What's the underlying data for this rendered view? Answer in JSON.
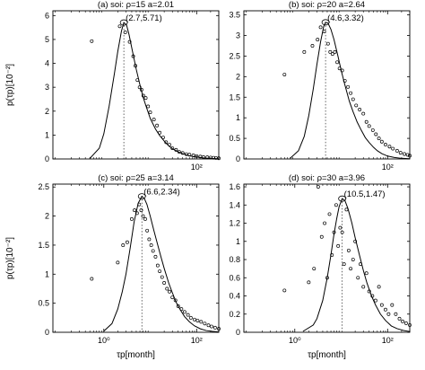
{
  "chart_data": [
    {
      "type": "line",
      "title": "(a) soi:  ρ=15   a=2.01",
      "ylabel": "p(τp)[10⁻²]",
      "xlabel": "",
      "xscale": "log",
      "xlim": [
        0.08,
        300
      ],
      "ylim": [
        0,
        6.2
      ],
      "yticks": [
        0,
        1,
        2,
        3,
        4,
        5,
        6
      ],
      "yticklabels": [
        "0",
        "1",
        "2",
        "3",
        "4",
        "5",
        "6"
      ],
      "xticks": [
        100
      ],
      "xticklabels": [
        "10²"
      ],
      "peak": {
        "x": 2.7,
        "y": 5.71,
        "label": "(2.7,5.71)"
      },
      "curve": {
        "x": [
          0.5,
          0.8,
          1.0,
          1.3,
          1.7,
          2.0,
          2.4,
          2.7,
          3.1,
          3.5,
          4.0,
          5.0,
          6.0,
          7.0,
          8.0,
          10,
          13,
          16,
          20,
          25,
          30,
          40,
          50,
          70,
          100,
          150,
          200,
          300
        ],
        "y": [
          0.02,
          0.45,
          1.05,
          2.2,
          3.6,
          4.5,
          5.35,
          5.71,
          5.6,
          5.2,
          4.65,
          3.75,
          3.1,
          2.6,
          2.25,
          1.7,
          1.25,
          0.98,
          0.75,
          0.55,
          0.43,
          0.3,
          0.22,
          0.13,
          0.08,
          0.04,
          0.025,
          0.01
        ]
      },
      "points": {
        "x": [
          0.55,
          2.2,
          2.9,
          3.6,
          4.3,
          4.8,
          5.3,
          5.9,
          6.5,
          7.1,
          8.0,
          9.0,
          10,
          12,
          14,
          16,
          19,
          22,
          26,
          30,
          36,
          42,
          50,
          60,
          70,
          85,
          100,
          120,
          140,
          170,
          200,
          230,
          260,
          300
        ],
        "y": [
          4.93,
          5.55,
          5.3,
          4.9,
          4.3,
          3.9,
          3.3,
          3.0,
          2.9,
          2.65,
          2.55,
          2.2,
          1.95,
          1.65,
          1.4,
          1.1,
          0.9,
          0.7,
          0.6,
          0.45,
          0.38,
          0.3,
          0.25,
          0.2,
          0.18,
          0.15,
          0.12,
          0.1,
          0.08,
          0.07,
          0.06,
          0.05,
          0.04,
          0.03
        ]
      }
    },
    {
      "type": "line",
      "title": "(b) soi:  ρ=20   a=2.64",
      "ylabel": "",
      "xlabel": "",
      "xscale": "log",
      "xlim": [
        0.08,
        300
      ],
      "ylim": [
        0,
        3.6
      ],
      "yticks": [
        0,
        0.5,
        1,
        1.5,
        2,
        2.5,
        3,
        3.5
      ],
      "yticklabels": [
        "0",
        "0.5",
        "1",
        "1.5",
        "2",
        "2.5",
        "3",
        "3.5"
      ],
      "xticks": [
        100
      ],
      "xticklabels": [
        "10²"
      ],
      "peak": {
        "x": 4.6,
        "y": 3.32,
        "label": "(4.6,3.32)"
      },
      "curve": {
        "x": [
          0.8,
          1.2,
          1.6,
          2.0,
          2.5,
          3.0,
          3.6,
          4.2,
          4.6,
          5.2,
          6.0,
          7.0,
          8.5,
          10,
          12,
          15,
          18,
          22,
          27,
          33,
          40,
          50,
          60,
          75,
          100,
          140,
          200,
          300
        ],
        "y": [
          0.02,
          0.2,
          0.55,
          1.05,
          1.7,
          2.3,
          2.85,
          3.22,
          3.32,
          3.3,
          3.15,
          2.9,
          2.5,
          2.15,
          1.8,
          1.4,
          1.15,
          0.9,
          0.7,
          0.52,
          0.4,
          0.28,
          0.2,
          0.13,
          0.07,
          0.035,
          0.015,
          0.005
        ]
      },
      "points": {
        "x": [
          0.6,
          1.6,
          2.4,
          3.1,
          3.6,
          4.3,
          5.2,
          5.8,
          6.5,
          7.3,
          8.2,
          9.2,
          10.5,
          12,
          14,
          16,
          18,
          21,
          25,
          30,
          35,
          40,
          48,
          56,
          65,
          75,
          90,
          110,
          130,
          160,
          190,
          230,
          270,
          300
        ],
        "y": [
          2.05,
          2.6,
          2.75,
          2.9,
          3.2,
          3.1,
          2.8,
          2.6,
          2.55,
          2.6,
          2.35,
          2.2,
          2.15,
          1.9,
          1.75,
          1.6,
          1.45,
          1.3,
          1.2,
          1.1,
          0.9,
          0.8,
          0.7,
          0.6,
          0.5,
          0.42,
          0.35,
          0.3,
          0.25,
          0.2,
          0.15,
          0.12,
          0.1,
          0.08
        ]
      }
    },
    {
      "type": "line",
      "title": "(c) soi:  ρ=25   a=3.14",
      "ylabel": "p(τp)[10⁻²]",
      "xlabel": "τp[month]",
      "xscale": "log",
      "xlim": [
        0.08,
        300
      ],
      "ylim": [
        0,
        2.55
      ],
      "yticks": [
        0,
        0.5,
        1,
        1.5,
        2,
        2.5
      ],
      "yticklabels": [
        "0",
        "0.5",
        "1",
        "1.5",
        "2",
        "2.5"
      ],
      "xticks": [
        1,
        100
      ],
      "xticklabels": [
        "10⁰",
        "10²"
      ],
      "peak": {
        "x": 6.6,
        "y": 2.34,
        "label": "(6.6,2.34)"
      },
      "curve": {
        "x": [
          1.0,
          1.5,
          2.0,
          2.5,
          3.0,
          3.7,
          4.5,
          5.5,
          6.6,
          7.5,
          8.5,
          10,
          12,
          14,
          17,
          20,
          25,
          30,
          36,
          45,
          55,
          70,
          90,
          120,
          160,
          220,
          300
        ],
        "y": [
          0.02,
          0.15,
          0.4,
          0.7,
          1.0,
          1.45,
          1.9,
          2.22,
          2.34,
          2.3,
          2.2,
          2.0,
          1.75,
          1.55,
          1.3,
          1.1,
          0.85,
          0.68,
          0.52,
          0.38,
          0.27,
          0.18,
          0.11,
          0.06,
          0.03,
          0.015,
          0.005
        ]
      },
      "points": {
        "x": [
          0.55,
          2.0,
          2.6,
          3.2,
          4.0,
          4.6,
          5.2,
          5.8,
          6.4,
          7.0,
          7.8,
          8.6,
          9.5,
          10.5,
          11.5,
          13,
          14.5,
          16,
          18,
          20,
          23,
          26,
          30,
          35,
          40,
          47,
          55,
          65,
          75,
          90,
          105,
          125,
          150,
          180,
          210,
          250,
          300
        ],
        "y": [
          0.92,
          1.2,
          1.5,
          1.55,
          1.95,
          2.1,
          2.05,
          2.2,
          2.1,
          2.0,
          1.95,
          1.75,
          1.6,
          1.5,
          1.4,
          1.3,
          1.15,
          1.05,
          0.95,
          0.85,
          0.75,
          0.7,
          0.6,
          0.55,
          0.45,
          0.4,
          0.35,
          0.3,
          0.25,
          0.22,
          0.2,
          0.18,
          0.15,
          0.12,
          0.1,
          0.08,
          0.06
        ]
      }
    },
    {
      "type": "line",
      "title": "(d) soi:  ρ=30   a=3.96",
      "ylabel": "",
      "xlabel": "τp[month]",
      "xscale": "log",
      "xlim": [
        0.08,
        300
      ],
      "ylim": [
        0,
        1.63
      ],
      "yticks": [
        0,
        0.2,
        0.4,
        0.6,
        0.8,
        1,
        1.2,
        1.4,
        1.6
      ],
      "yticklabels": [
        "0",
        "0.2",
        "0.4",
        "0.6",
        "0.8",
        "1",
        "1.2",
        "1.4",
        "1.6"
      ],
      "xticks": [
        1,
        100
      ],
      "xticklabels": [
        "10⁰",
        "10²"
      ],
      "peak": {
        "x": 10.5,
        "y": 1.47,
        "label": "(10.5,1.47)"
      },
      "curve": {
        "x": [
          1.5,
          2.5,
          3.0,
          4.0,
          5.0,
          6.0,
          7.0,
          8.0,
          9.0,
          10.5,
          12,
          14,
          17,
          20,
          25,
          30,
          36,
          45,
          55,
          70,
          90,
          120,
          160,
          220,
          300
        ],
        "y": [
          0.01,
          0.08,
          0.15,
          0.35,
          0.6,
          0.85,
          1.08,
          1.25,
          1.38,
          1.47,
          1.45,
          1.36,
          1.2,
          1.04,
          0.84,
          0.68,
          0.54,
          0.4,
          0.3,
          0.2,
          0.13,
          0.07,
          0.04,
          0.02,
          0.008
        ]
      },
      "points": {
        "x": [
          0.6,
          2.0,
          2.6,
          3.2,
          3.8,
          4.4,
          5.0,
          5.6,
          6.3,
          7.0,
          7.8,
          8.6,
          9.5,
          10.5,
          11.5,
          13,
          14.5,
          16,
          18,
          20,
          23,
          26,
          30,
          35,
          40,
          47,
          55,
          65,
          75,
          90,
          105,
          125,
          150,
          180,
          210,
          250,
          300
        ],
        "y": [
          0.46,
          0.55,
          0.7,
          1.6,
          1.05,
          1.2,
          0.6,
          1.3,
          0.85,
          1.1,
          1.4,
          0.95,
          1.15,
          1.1,
          0.75,
          1.35,
          0.9,
          0.7,
          0.8,
          1.0,
          0.6,
          0.75,
          0.5,
          0.65,
          0.45,
          0.4,
          0.35,
          0.5,
          0.3,
          0.25,
          0.2,
          0.3,
          0.2,
          0.15,
          0.12,
          0.1,
          0.08
        ]
      }
    }
  ]
}
